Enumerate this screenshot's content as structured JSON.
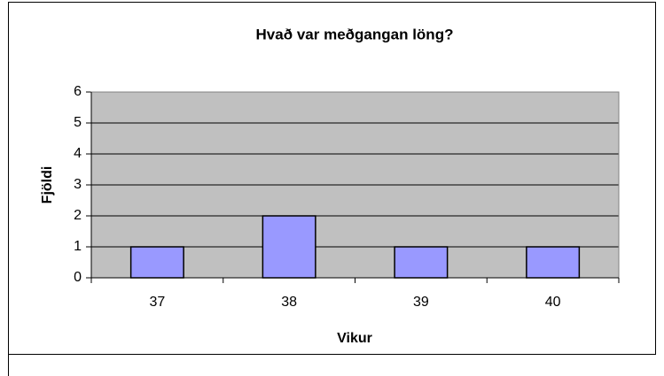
{
  "chart_data": {
    "type": "bar",
    "title": "Hvað var meðgangan löng?",
    "x_label": "Vikur",
    "y_label": "Fjöldi",
    "categories": [
      "37",
      "38",
      "39",
      "40"
    ],
    "values": [
      1,
      2,
      1,
      1
    ],
    "color": "#9999ff",
    "ylim": [
      0,
      6
    ],
    "yticks": [
      0,
      1,
      2,
      3,
      4,
      5,
      6
    ],
    "grid": true
  }
}
